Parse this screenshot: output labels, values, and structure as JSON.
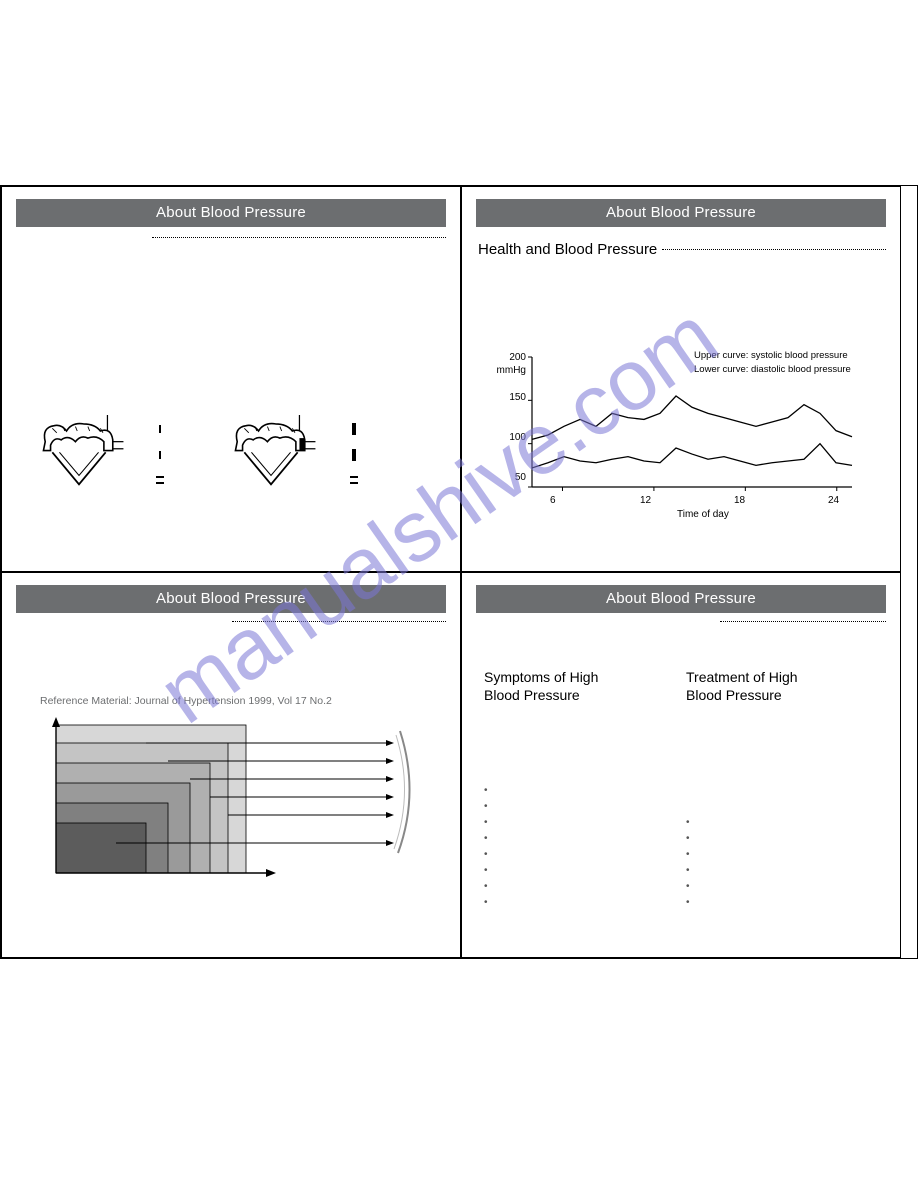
{
  "watermark_text": "manualshive.com",
  "panels": {
    "p1": {
      "title": "About Blood Pressure"
    },
    "p2": {
      "title": "About Blood Pressure",
      "section": "Health and Blood Pressure",
      "chart": {
        "type": "line",
        "yunit": "mmHg",
        "xlabel": "Time of day",
        "xticks": [
          "6",
          "12",
          "18",
          "24"
        ],
        "yticks": [
          "50",
          "100",
          "150",
          "200"
        ],
        "ylim": [
          50,
          200
        ],
        "xlim": [
          4,
          25
        ],
        "line_color": "#000000",
        "axis_color": "#000000",
        "legend1": "Upper curve: systolic blood pressure",
        "legend2": "Lower curve: diastolic blood pressure",
        "systolic": [
          105,
          110,
          120,
          128,
          120,
          135,
          130,
          128,
          135,
          155,
          142,
          135,
          130,
          125,
          120,
          125,
          130,
          145,
          135,
          115,
          108
        ],
        "diastolic": [
          72,
          78,
          85,
          80,
          78,
          82,
          85,
          80,
          78,
          95,
          88,
          82,
          85,
          80,
          75,
          78,
          80,
          82,
          100,
          78,
          75
        ]
      }
    },
    "p3": {
      "title": "About Blood Pressure",
      "reference": "Reference Material: Journal of Hypertension 1999, Vol 17 No.2",
      "bars": {
        "fills": [
          "#d7d7d7",
          "#c4c4c4",
          "#b0b0b0",
          "#9a9a9a",
          "#808080",
          "#5c5c5c"
        ],
        "widths": [
          190,
          172,
          154,
          134,
          112,
          90
        ],
        "heights": [
          148,
          130,
          110,
          90,
          70,
          50
        ]
      }
    },
    "p4": {
      "title": "About Blood Pressure",
      "col1_title": "Symptoms of High\nBlood Pressure",
      "col2_title": "Treatment of High\nBlood Pressure",
      "col1_bullet_count": 8,
      "col2_bullet_count": 6
    }
  }
}
